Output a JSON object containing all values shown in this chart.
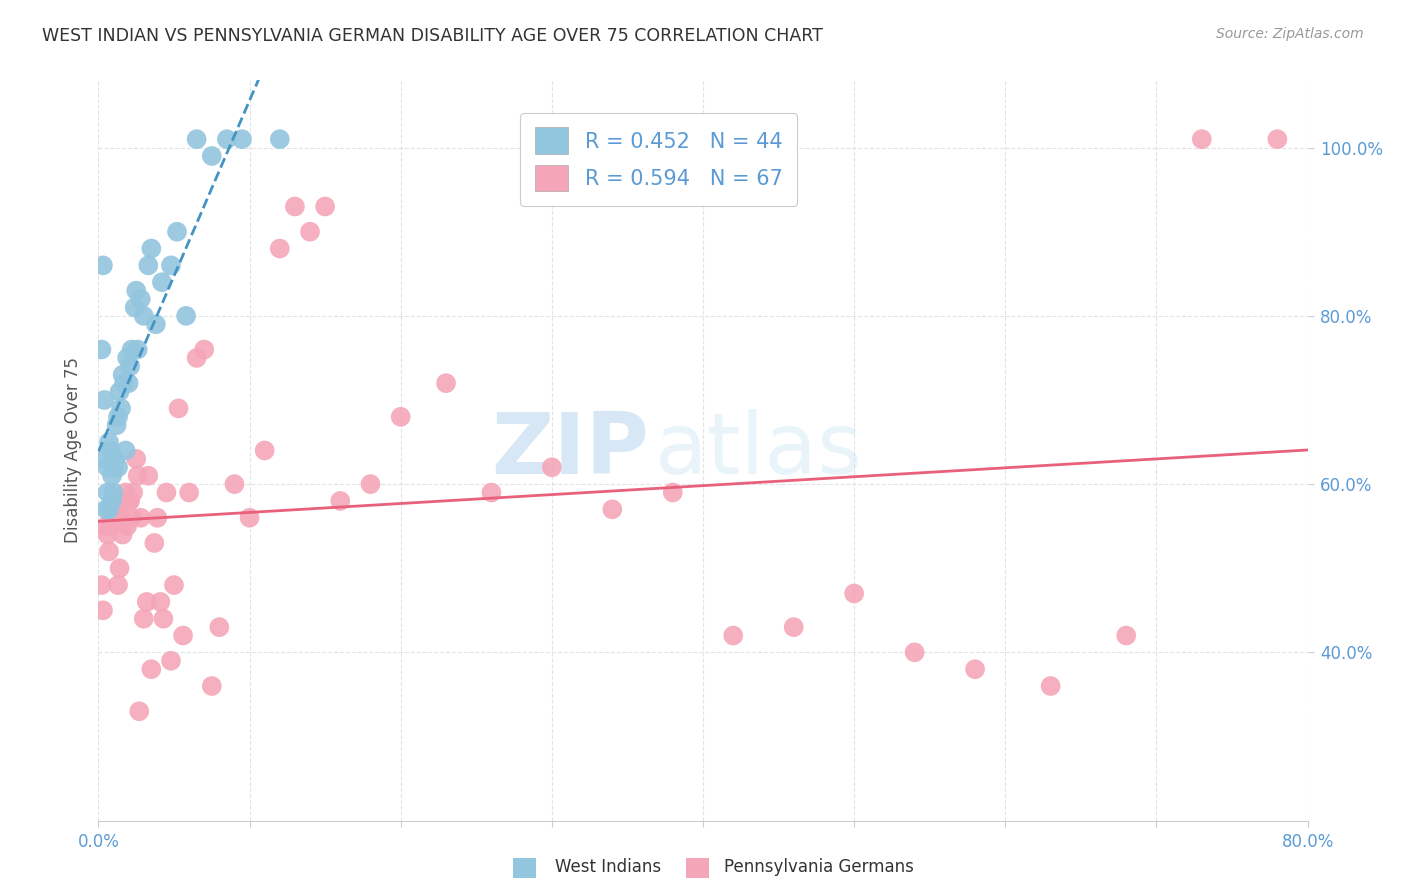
{
  "title": "WEST INDIAN VS PENNSYLVANIA GERMAN DISABILITY AGE OVER 75 CORRELATION CHART",
  "source": "Source: ZipAtlas.com",
  "ylabel_label": "Disability Age Over 75",
  "x_min": 0.0,
  "x_max": 0.8,
  "y_min": 0.2,
  "y_max": 1.08,
  "x_ticks": [
    0.0,
    0.1,
    0.2,
    0.3,
    0.4,
    0.5,
    0.6,
    0.7,
    0.8
  ],
  "x_tick_labels_left": [
    "0.0%"
  ],
  "x_tick_labels_right": [
    "80.0%"
  ],
  "y_ticks": [
    0.4,
    0.6,
    0.8,
    1.0
  ],
  "y_tick_labels": [
    "40.0%",
    "60.0%",
    "80.0%",
    "100.0%"
  ],
  "west_indians_R": 0.452,
  "west_indians_N": 44,
  "penn_german_R": 0.594,
  "penn_german_N": 67,
  "blue_color": "#92c5de",
  "pink_color": "#f4a6b8",
  "blue_line_color": "#4393c3",
  "pink_line_color": "#e8607a",
  "west_indians_x": [
    0.002,
    0.003,
    0.004,
    0.005,
    0.005,
    0.006,
    0.006,
    0.007,
    0.007,
    0.008,
    0.009,
    0.009,
    0.01,
    0.01,
    0.011,
    0.012,
    0.013,
    0.013,
    0.014,
    0.015,
    0.016,
    0.017,
    0.018,
    0.019,
    0.02,
    0.021,
    0.022,
    0.024,
    0.025,
    0.026,
    0.028,
    0.03,
    0.033,
    0.035,
    0.038,
    0.042,
    0.048,
    0.052,
    0.058,
    0.065,
    0.075,
    0.085,
    0.095,
    0.12
  ],
  "west_indians_y": [
    0.76,
    0.86,
    0.7,
    0.57,
    0.63,
    0.59,
    0.62,
    0.57,
    0.65,
    0.64,
    0.58,
    0.61,
    0.59,
    0.62,
    0.63,
    0.67,
    0.62,
    0.68,
    0.71,
    0.69,
    0.73,
    0.72,
    0.64,
    0.75,
    0.72,
    0.74,
    0.76,
    0.81,
    0.83,
    0.76,
    0.82,
    0.8,
    0.86,
    0.88,
    0.79,
    0.84,
    0.86,
    0.9,
    0.8,
    1.01,
    0.99,
    1.01,
    1.01,
    1.01
  ],
  "penn_german_x": [
    0.002,
    0.003,
    0.005,
    0.006,
    0.007,
    0.008,
    0.009,
    0.01,
    0.011,
    0.012,
    0.013,
    0.014,
    0.015,
    0.016,
    0.017,
    0.018,
    0.019,
    0.02,
    0.021,
    0.022,
    0.023,
    0.025,
    0.026,
    0.027,
    0.028,
    0.03,
    0.032,
    0.033,
    0.035,
    0.037,
    0.039,
    0.041,
    0.043,
    0.045,
    0.048,
    0.05,
    0.053,
    0.056,
    0.06,
    0.065,
    0.07,
    0.075,
    0.08,
    0.09,
    0.1,
    0.11,
    0.12,
    0.13,
    0.14,
    0.15,
    0.16,
    0.18,
    0.2,
    0.23,
    0.26,
    0.3,
    0.34,
    0.38,
    0.42,
    0.46,
    0.5,
    0.54,
    0.58,
    0.63,
    0.68,
    0.73,
    0.78
  ],
  "penn_german_y": [
    0.48,
    0.45,
    0.55,
    0.54,
    0.52,
    0.55,
    0.57,
    0.56,
    0.58,
    0.57,
    0.48,
    0.5,
    0.56,
    0.54,
    0.58,
    0.59,
    0.55,
    0.58,
    0.58,
    0.56,
    0.59,
    0.63,
    0.61,
    0.33,
    0.56,
    0.44,
    0.46,
    0.61,
    0.38,
    0.53,
    0.56,
    0.46,
    0.44,
    0.59,
    0.39,
    0.48,
    0.69,
    0.42,
    0.59,
    0.75,
    0.76,
    0.36,
    0.43,
    0.6,
    0.56,
    0.64,
    0.88,
    0.93,
    0.9,
    0.93,
    0.58,
    0.6,
    0.68,
    0.72,
    0.59,
    0.62,
    0.57,
    0.59,
    0.42,
    0.43,
    0.47,
    0.4,
    0.38,
    0.36,
    0.42,
    1.01,
    1.01
  ],
  "watermark_zip": "ZIP",
  "watermark_atlas": "atlas",
  "background_color": "#ffffff",
  "grid_color": "#dddddd"
}
